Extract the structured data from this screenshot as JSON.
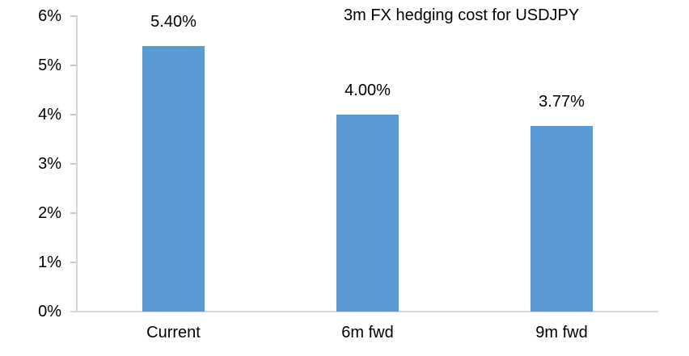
{
  "chart_data": {
    "type": "bar",
    "title": "3m FX hedging cost for USDJPY",
    "categories": [
      "Current",
      "6m fwd",
      "9m fwd"
    ],
    "values": [
      5.4,
      4.0,
      3.77
    ],
    "data_labels": [
      "5.40%",
      "4.00%",
      "3.77%"
    ],
    "y_tick_labels": [
      "0%",
      "1%",
      "2%",
      "3%",
      "4%",
      "5%",
      "6%"
    ],
    "ylim": [
      0,
      6
    ],
    "xlabel": "",
    "ylabel": "",
    "grid": false,
    "legend": false,
    "bar_color": "#5B9BD5",
    "axis_color": "#D9D9D9",
    "text_color": "#000000"
  }
}
